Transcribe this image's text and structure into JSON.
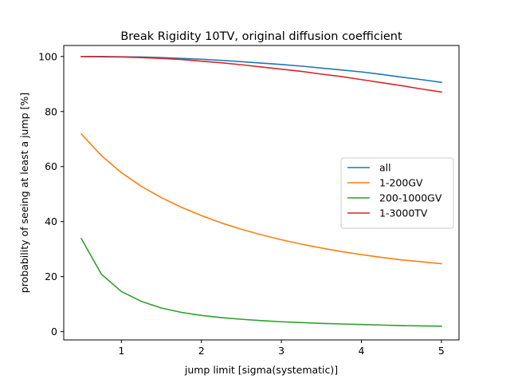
{
  "chart_data": {
    "type": "line",
    "title": "Break Rigidity 10TV, original diffusion coefficient",
    "xlabel": "jump limit [sigma(systematic)]",
    "ylabel": "probability of seeing at least a jump [%]",
    "xlim": [
      0.28,
      5.22
    ],
    "ylim": [
      -3,
      104
    ],
    "xticks": [
      1,
      2,
      3,
      4,
      5
    ],
    "yticks": [
      0,
      20,
      40,
      60,
      80,
      100
    ],
    "x": [
      0.5,
      0.75,
      1.0,
      1.25,
      1.5,
      1.75,
      2.0,
      2.25,
      2.5,
      2.75,
      3.0,
      3.25,
      3.5,
      3.75,
      4.0,
      4.25,
      4.5,
      4.75,
      5.0
    ],
    "series": [
      {
        "name": "all",
        "color": "#1f77b4",
        "values": [
          100.0,
          100.0,
          99.9,
          99.8,
          99.6,
          99.3,
          99.0,
          98.6,
          98.1,
          97.6,
          97.1,
          96.5,
          95.8,
          95.1,
          94.4,
          93.5,
          92.5,
          91.6,
          90.6
        ]
      },
      {
        "name": "1-200GV",
        "color": "#ff7f0e",
        "values": [
          71.8,
          64.0,
          57.8,
          52.8,
          48.7,
          45.2,
          42.2,
          39.5,
          37.2,
          35.2,
          33.4,
          31.8,
          30.4,
          29.1,
          28.0,
          27.0,
          26.1,
          25.4,
          24.7
        ]
      },
      {
        "name": "200-1000GV",
        "color": "#2ca02c",
        "values": [
          33.8,
          20.9,
          14.6,
          11.0,
          8.6,
          7.0,
          5.9,
          5.1,
          4.5,
          4.0,
          3.6,
          3.3,
          3.0,
          2.8,
          2.6,
          2.4,
          2.2,
          2.1,
          2.0
        ]
      },
      {
        "name": "1-3000TV",
        "color": "#d62728",
        "values": [
          100.0,
          99.9,
          99.8,
          99.6,
          99.3,
          98.9,
          98.3,
          97.7,
          97.0,
          96.2,
          95.4,
          94.6,
          93.6,
          92.7,
          91.6,
          90.5,
          89.4,
          88.2,
          87.1
        ]
      }
    ],
    "grid": false,
    "legend": "center-right"
  }
}
